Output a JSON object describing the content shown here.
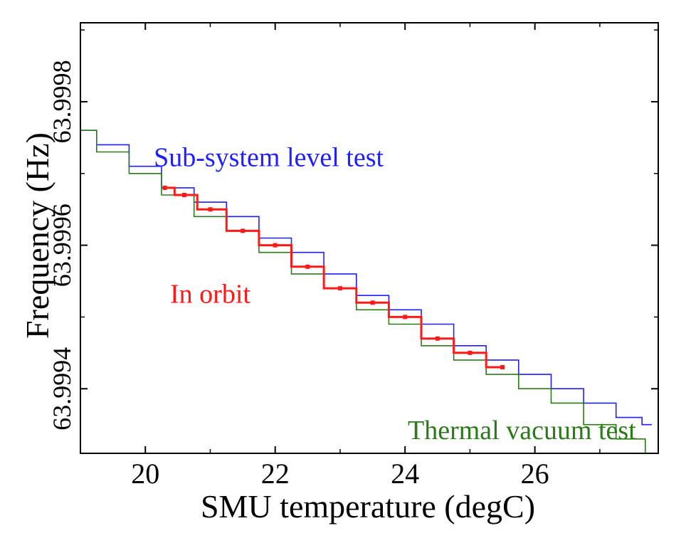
{
  "chart_data": {
    "type": "line",
    "title": "",
    "xlabel": "SMU temperature (degC)",
    "ylabel": "Frequency (Hz)",
    "xlim": [
      19,
      27.9
    ],
    "ylim": [
      63.99931,
      63.99991
    ],
    "xticks": [
      20,
      22,
      24,
      26
    ],
    "xtick_labels": [
      "20",
      "22",
      "24",
      "26"
    ],
    "yticks": [
      63.9994,
      63.9996,
      63.9998
    ],
    "ytick_labels": [
      "63.9994",
      "63.9996",
      "63.9998"
    ],
    "grid": false,
    "series": [
      {
        "name": "Sub-system level test",
        "color": "#1f1fff",
        "x": [
          19.0,
          19.5,
          20.0,
          20.5,
          21.0,
          21.5,
          22.0,
          22.5,
          23.0,
          23.5,
          24.0,
          24.5,
          25.0,
          25.5,
          26.0,
          26.5,
          27.0,
          27.5,
          27.8
        ],
        "y": [
          63.99976,
          63.99974,
          63.99971,
          63.99968,
          63.99966,
          63.99964,
          63.99961,
          63.99959,
          63.99956,
          63.99953,
          63.99951,
          63.99949,
          63.99946,
          63.99944,
          63.99942,
          63.9994,
          63.99938,
          63.99936,
          63.99935
        ]
      },
      {
        "name": "Thermal vacuum test",
        "color": "#2a7a1a",
        "x": [
          19.0,
          19.5,
          20.0,
          20.5,
          21.0,
          21.5,
          22.0,
          22.5,
          23.0,
          23.5,
          24.0,
          24.5,
          25.0,
          25.5,
          26.0,
          26.5,
          27.0,
          27.5,
          27.9
        ],
        "y": [
          63.99976,
          63.99973,
          63.9997,
          63.99967,
          63.99964,
          63.99962,
          63.99959,
          63.99956,
          63.99954,
          63.99951,
          63.99949,
          63.99946,
          63.99944,
          63.99942,
          63.9994,
          63.99938,
          63.99935,
          63.99933,
          63.99931
        ]
      },
      {
        "name": "In orbit",
        "color": "#ff1a1a",
        "x": [
          20.3,
          20.6,
          21.0,
          21.5,
          22.0,
          22.5,
          23.0,
          23.5,
          24.0,
          24.5,
          25.0,
          25.5
        ],
        "y": [
          63.99968,
          63.99967,
          63.99965,
          63.99962,
          63.9996,
          63.99957,
          63.99954,
          63.99952,
          63.9995,
          63.99947,
          63.99945,
          63.99943
        ]
      }
    ],
    "annotations": [
      {
        "text": "Sub-system level test",
        "color": "#1f1fff",
        "at": [
          21.9,
          63.99971
        ]
      },
      {
        "text": "In orbit",
        "color": "#ff1a1a",
        "at": [
          21.0,
          63.99952
        ]
      },
      {
        "text": "Thermal vacuum test",
        "color": "#2a7a1a",
        "at": [
          25.8,
          63.99933
        ]
      }
    ]
  }
}
